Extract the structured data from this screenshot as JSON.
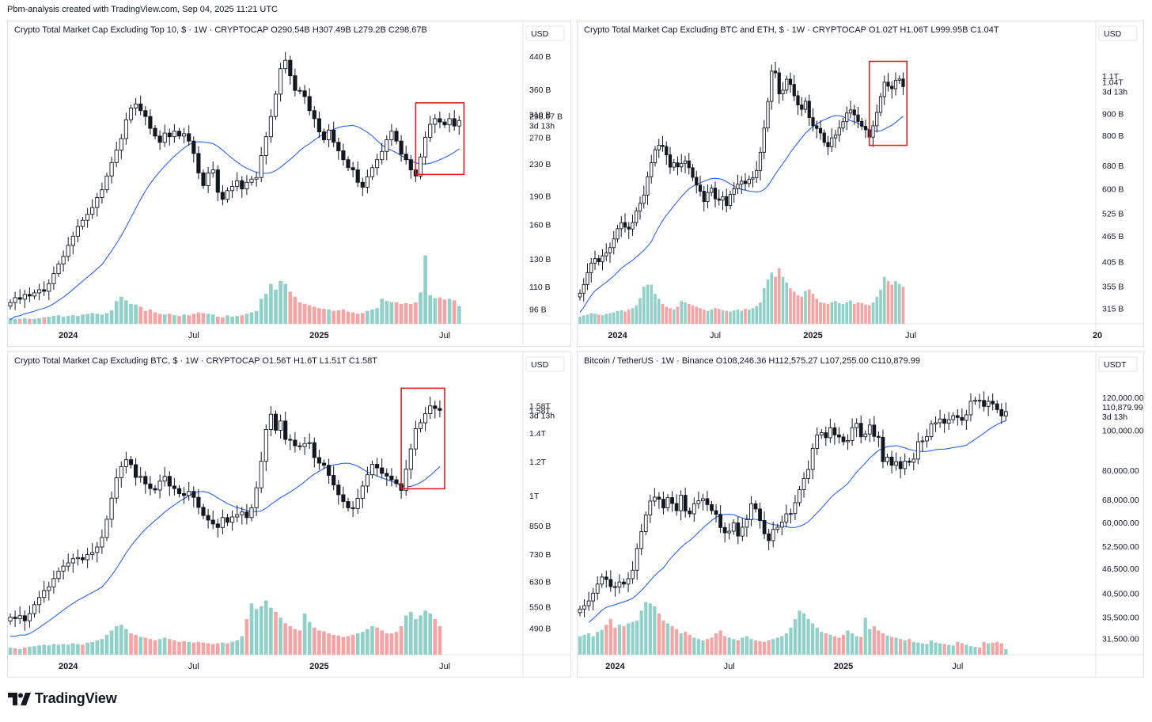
{
  "header": {
    "created_text": "Pbm-analysis created with TradingView.com, Sep 04, 2025 11:21 UTC"
  },
  "branding": {
    "logo_text": "TradingView"
  },
  "colors": {
    "up": "#26a69a",
    "down": "#ef5350",
    "vol_up": "#8fd1c8",
    "vol_down": "#f5a3a3",
    "ma": "#2962ff",
    "highlight": "#e01e1e",
    "candle": "#131722"
  },
  "chart_data": [
    {
      "type": "candlestick",
      "title": "Crypto Total Market Cap Excluding Top 10, $ · 1W · CRYPTOCAP  O290.54B  H307.49B  L279.2B  C298.67B",
      "currency": "USD",
      "scale": "log",
      "ylim": [
        88,
        470
      ],
      "y_ticks": [
        96,
        110,
        130,
        160,
        190,
        230,
        270,
        310,
        360,
        440
      ],
      "y_tick_labels": [
        "96 B",
        "110 B",
        "130 B",
        "160 B",
        "190 B",
        "230 B",
        "270 B",
        "310 B",
        "360 B",
        "440 B"
      ],
      "x_labels": [
        "2024",
        "Jul",
        "2025",
        "Jul"
      ],
      "last_price_label": "298.67 B",
      "countdown_label": "3d 13h",
      "ma_period": 20,
      "highlight_weeks": [
        -9,
        -1
      ],
      "closes": [
        100,
        103,
        102,
        105,
        104,
        106,
        108,
        107,
        112,
        119,
        126,
        132,
        141,
        149,
        158,
        164,
        170,
        177,
        188,
        197,
        214,
        232,
        250,
        268,
        300,
        322,
        330,
        317,
        306,
        285,
        272,
        262,
        277,
        271,
        280,
        272,
        276,
        264,
        245,
        218,
        202,
        218,
        222,
        194,
        186,
        196,
        201,
        208,
        198,
        206,
        210,
        212,
        242,
        271,
        306,
        350,
        408,
        429,
        391,
        358,
        357,
        345,
        317,
        302,
        279,
        266,
        282,
        262,
        249,
        236,
        225,
        222,
        206,
        200,
        213,
        225,
        236,
        248,
        266,
        280,
        264,
        244,
        236,
        222,
        214,
        240,
        270,
        292,
        302,
        296,
        291,
        302,
        289,
        298.67
      ],
      "volume": [
        0.08,
        0.07,
        0.07,
        0.08,
        0.07,
        0.07,
        0.08,
        0.09,
        0.1,
        0.11,
        0.12,
        0.1,
        0.11,
        0.12,
        0.11,
        0.13,
        0.14,
        0.15,
        0.14,
        0.13,
        0.15,
        0.19,
        0.32,
        0.38,
        0.33,
        0.28,
        0.27,
        0.24,
        0.18,
        0.2,
        0.16,
        0.14,
        0.13,
        0.14,
        0.12,
        0.11,
        0.13,
        0.12,
        0.14,
        0.16,
        0.15,
        0.14,
        0.13,
        0.1,
        0.09,
        0.12,
        0.1,
        0.11,
        0.12,
        0.14,
        0.16,
        0.18,
        0.35,
        0.42,
        0.56,
        0.48,
        0.6,
        0.56,
        0.45,
        0.38,
        0.3,
        0.28,
        0.26,
        0.24,
        0.22,
        0.21,
        0.2,
        0.18,
        0.19,
        0.2,
        0.17,
        0.16,
        0.14,
        0.15,
        0.18,
        0.2,
        0.22,
        0.35,
        0.32,
        0.3,
        0.3,
        0.28,
        0.29,
        0.28,
        0.3,
        0.44,
        0.96,
        0.4,
        0.36,
        0.37,
        0.34,
        0.35,
        0.33,
        0.25
      ]
    },
    {
      "type": "candlestick",
      "title": "Crypto Total Market Cap Excluding BTC and ETH, $ · 1W · CRYPTOCAP  O1.02T  H1.06T  L999.95B  C1.04T",
      "currency": "USD",
      "scale": "log",
      "ylim": [
        290,
        1300
      ],
      "y_ticks": [
        315,
        355,
        405,
        465,
        525,
        600,
        680,
        800,
        900,
        1100
      ],
      "y_tick_labels": [
        "315 B",
        "355 B",
        "405 B",
        "465 B",
        "525 B",
        "600 B",
        "680 B",
        "800 B",
        "900 B",
        "1.1T"
      ],
      "x_labels": [
        "2024",
        "Jul",
        "2025",
        "Jul",
        "20"
      ],
      "last_price_label": "1.04T",
      "countdown_label": "3d 13h",
      "ma_period": 20,
      "highlight_weeks": [
        -9,
        -1
      ],
      "closes": [
        342,
        358,
        382,
        402,
        412,
        405,
        418,
        425,
        437,
        458,
        484,
        500,
        488,
        483,
        500,
        532,
        555,
        580,
        640,
        690,
        740,
        758,
        753,
        720,
        674,
        690,
        675,
        688,
        697,
        672,
        638,
        612,
        592,
        560,
        588,
        602,
        568,
        564,
        575,
        548,
        582,
        600,
        615,
        625,
        617,
        632,
        637,
        662,
        730,
        832,
        960,
        1130,
        1120,
        1000,
        1020,
        1082,
        1052,
        990,
        942,
        920,
        961,
        880,
        842,
        830,
        810,
        770,
        752,
        789,
        801,
        832,
        861,
        902,
        917,
        893,
        862,
        840,
        824,
        792,
        842,
        905,
        985,
        1065,
        1042,
        1028,
        1076,
        1083,
        1040
      ],
      "volume": [
        0.1,
        0.12,
        0.13,
        0.15,
        0.14,
        0.13,
        0.12,
        0.14,
        0.15,
        0.16,
        0.18,
        0.19,
        0.17,
        0.2,
        0.22,
        0.26,
        0.36,
        0.52,
        0.55,
        0.55,
        0.42,
        0.35,
        0.28,
        0.24,
        0.22,
        0.2,
        0.24,
        0.32,
        0.3,
        0.28,
        0.26,
        0.24,
        0.22,
        0.2,
        0.18,
        0.2,
        0.22,
        0.21,
        0.19,
        0.18,
        0.17,
        0.19,
        0.2,
        0.18,
        0.21,
        0.2,
        0.22,
        0.25,
        0.3,
        0.5,
        0.62,
        0.72,
        0.66,
        0.78,
        0.66,
        0.58,
        0.5,
        0.45,
        0.4,
        0.38,
        0.46,
        0.48,
        0.42,
        0.35,
        0.3,
        0.29,
        0.28,
        0.3,
        0.32,
        0.29,
        0.28,
        0.3,
        0.33,
        0.28,
        0.3,
        0.29,
        0.27,
        0.26,
        0.3,
        0.38,
        0.48,
        0.66,
        0.6,
        0.55,
        0.6,
        0.56,
        0.52
      ]
    },
    {
      "type": "candlestick",
      "title": "Crypto Total Market Cap Excluding BTC, $ · 1W · CRYPTOCAP  O1.56T  H1.6T  L1.51T  C1.58T",
      "currency": "USD",
      "scale": "log",
      "ylim": [
        425,
        1900
      ],
      "y_ticks": [
        490,
        550,
        630,
        730,
        850,
        1000,
        1200,
        1400,
        1580
      ],
      "y_tick_labels": [
        "490 B",
        "550 B",
        "630 B",
        "730 B",
        "850 B",
        "1T",
        "1.2T",
        "1.4T",
        "1.58T"
      ],
      "x_labels": [
        "2024",
        "Jul",
        "2025",
        "Jul"
      ],
      "last_price_label": "1.58T",
      "countdown_label": "3d 13h",
      "ma_period": 20,
      "highlight_weeks": [
        -8,
        -1
      ],
      "closes": [
        520,
        516,
        524,
        510,
        530,
        556,
        578,
        600,
        612,
        640,
        666,
        684,
        696,
        712,
        716,
        708,
        728,
        736,
        758,
        798,
        880,
        986,
        1100,
        1168,
        1212,
        1180,
        1102,
        1108,
        1064,
        1038,
        1030,
        1080,
        1108,
        1052,
        1038,
        1010,
        1000,
        1022,
        990,
        938,
        898,
        876,
        858,
        842,
        888,
        866,
        891,
        902,
        915,
        888,
        936,
        1042,
        1202,
        1426,
        1548,
        1420,
        1492,
        1352,
        1346,
        1306,
        1300,
        1322,
        1328,
        1226,
        1190,
        1176,
        1114,
        1058,
        1004,
        968,
        936,
        932,
        985,
        1052,
        1118,
        1182,
        1160,
        1126,
        1110,
        1088,
        1066,
        1028,
        1152,
        1284,
        1432,
        1478,
        1552,
        1618,
        1596,
        1580
      ],
      "volume": [
        0.1,
        0.09,
        0.08,
        0.1,
        0.11,
        0.12,
        0.13,
        0.14,
        0.13,
        0.15,
        0.14,
        0.15,
        0.14,
        0.16,
        0.15,
        0.14,
        0.17,
        0.18,
        0.2,
        0.22,
        0.28,
        0.34,
        0.4,
        0.42,
        0.36,
        0.3,
        0.28,
        0.25,
        0.24,
        0.22,
        0.2,
        0.22,
        0.24,
        0.22,
        0.2,
        0.18,
        0.19,
        0.18,
        0.17,
        0.18,
        0.17,
        0.16,
        0.15,
        0.16,
        0.17,
        0.16,
        0.18,
        0.2,
        0.26,
        0.5,
        0.72,
        0.64,
        0.68,
        0.76,
        0.66,
        0.6,
        0.52,
        0.44,
        0.4,
        0.36,
        0.34,
        0.58,
        0.46,
        0.38,
        0.34,
        0.33,
        0.3,
        0.28,
        0.27,
        0.25,
        0.26,
        0.28,
        0.3,
        0.32,
        0.36,
        0.4,
        0.38,
        0.34,
        0.3,
        0.3,
        0.32,
        0.4,
        0.55,
        0.6,
        0.5,
        0.55,
        0.62,
        0.58,
        0.5,
        0.4
      ]
    },
    {
      "type": "candlestick",
      "title": "Bitcoin / TetherUS · 1W · Binance  O108,246.36  H112,575.27  L107,255.00  C110,879.99",
      "currency": "USDT",
      "scale": "log",
      "ylim": [
        28800,
        135000
      ],
      "y_ticks": [
        31500,
        35500,
        40500,
        46500,
        52500,
        60000,
        68000,
        80000,
        100000,
        120000
      ],
      "y_tick_labels": [
        "31,500.00",
        "35,500.00",
        "40,500.00",
        "46,500.00",
        "52,500.00",
        "60,000.00",
        "68,000.00",
        "80,000.00",
        "100,000.00",
        "120,000.00"
      ],
      "x_labels": [
        "2024",
        "Jul",
        "2025",
        "Jul"
      ],
      "last_price_label": "110,879.99",
      "countdown_label": "3d 13h",
      "ma_period": 20,
      "highlight_weeks": null,
      "closes": [
        37100,
        37800,
        38800,
        40500,
        42600,
        44300,
        43700,
        42000,
        41900,
        43100,
        42600,
        43900,
        46000,
        51900,
        57000,
        62500,
        67500,
        69000,
        68200,
        65000,
        68800,
        66600,
        64000,
        69700,
        63900,
        62900,
        66500,
        67600,
        68400,
        66200,
        64000,
        62700,
        58300,
        56600,
        57100,
        59800,
        55600,
        58400,
        60900,
        66500,
        64600,
        60600,
        56300,
        54200,
        57700,
        58400,
        60100,
        62900,
        63000,
        66900,
        71900,
        76500,
        80400,
        90400,
        97300,
        98600,
        95900,
        101300,
        97400,
        96300,
        93800,
        94400,
        101400,
        103900,
        96400,
        97900,
        102900,
        96600,
        96100,
        84000,
        86100,
        82300,
        84000,
        80800,
        84200,
        83700,
        85200,
        93800,
        94200,
        96500,
        103500,
        104200,
        106400,
        103900,
        106000,
        108400,
        107300,
        105600,
        108900,
        117400,
        118000,
        117900,
        114100,
        117400,
        115700,
        112100,
        108200,
        110880
      ],
      "volume": [
        0.26,
        0.28,
        0.3,
        0.26,
        0.32,
        0.35,
        0.42,
        0.5,
        0.38,
        0.42,
        0.4,
        0.44,
        0.46,
        0.48,
        0.62,
        0.74,
        0.72,
        0.68,
        0.58,
        0.48,
        0.44,
        0.4,
        0.36,
        0.3,
        0.32,
        0.28,
        0.24,
        0.22,
        0.2,
        0.22,
        0.24,
        0.3,
        0.34,
        0.26,
        0.24,
        0.22,
        0.2,
        0.24,
        0.26,
        0.22,
        0.2,
        0.19,
        0.18,
        0.2,
        0.22,
        0.24,
        0.26,
        0.3,
        0.38,
        0.5,
        0.62,
        0.58,
        0.5,
        0.44,
        0.38,
        0.32,
        0.3,
        0.28,
        0.26,
        0.24,
        0.28,
        0.34,
        0.3,
        0.26,
        0.25,
        0.52,
        0.36,
        0.4,
        0.34,
        0.3,
        0.27,
        0.25,
        0.24,
        0.22,
        0.2,
        0.22,
        0.18,
        0.17,
        0.16,
        0.15,
        0.2,
        0.17,
        0.16,
        0.15,
        0.14,
        0.13,
        0.18,
        0.16,
        0.14,
        0.12,
        0.11,
        0.1,
        0.18,
        0.16,
        0.17,
        0.18,
        0.16,
        0.08
      ]
    }
  ]
}
